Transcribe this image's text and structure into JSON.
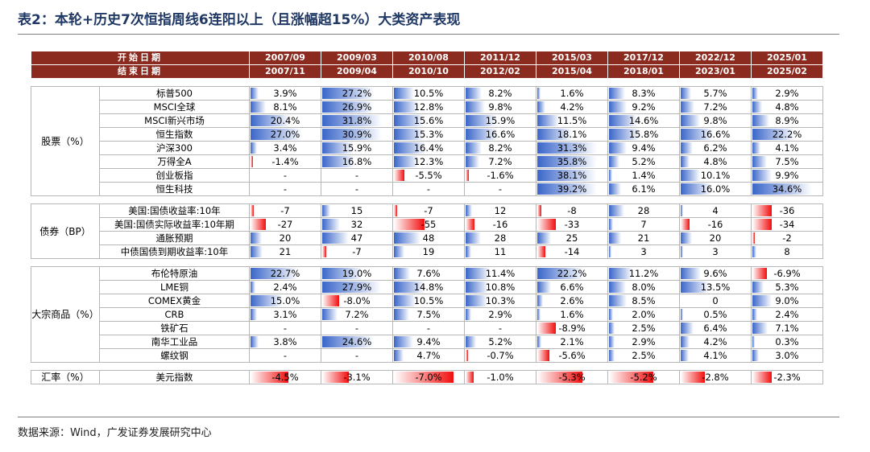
{
  "title": "表2：本轮+历史7次恒指周线6连阳以上（且涨幅超15%）大类资产表现",
  "source": "数据来源：Wind，广发证券发展研究中心",
  "header": {
    "start_label": "开始日期",
    "end_label": "结束日期",
    "start_dates": [
      "2007/09",
      "2009/03",
      "2010/08",
      "2011/12",
      "2015/03",
      "2017/12",
      "2022/12",
      "2025/01"
    ],
    "end_dates": [
      "2007/11",
      "2009/04",
      "2010/10",
      "2012/02",
      "2015/04",
      "2018/01",
      "2023/01",
      "2025/02"
    ]
  },
  "colors": {
    "header_bg": "#8b2a1f",
    "positive_bar": "#3a66c9",
    "negative_bar": "#f20d0d"
  },
  "sections": [
    {
      "name": "股票（%）",
      "key": "equity",
      "rows": [
        {
          "label": "标普500",
          "values": [
            "3.9%",
            "27.2%",
            "10.5%",
            "8.2%",
            "1.6%",
            "8.3%",
            "5.7%",
            "2.9%"
          ],
          "bars": [
            0.13,
            0.88,
            0.34,
            0.27,
            0.05,
            0.27,
            0.18,
            0.09
          ]
        },
        {
          "label": "MSCI全球",
          "values": [
            "8.1%",
            "26.9%",
            "12.8%",
            "9.8%",
            "4.2%",
            "9.2%",
            "7.2%",
            "4.8%"
          ],
          "bars": [
            0.26,
            0.87,
            0.41,
            0.32,
            0.14,
            0.3,
            0.23,
            0.16
          ]
        },
        {
          "label": "MSCI新兴市场",
          "values": [
            "20.4%",
            "31.8%",
            "15.6%",
            "15.9%",
            "11.5%",
            "14.6%",
            "9.8%",
            "8.9%"
          ],
          "bars": [
            0.66,
            1.0,
            0.5,
            0.51,
            0.37,
            0.47,
            0.32,
            0.29
          ]
        },
        {
          "label": "恒生指数",
          "values": [
            "27.0%",
            "30.9%",
            "15.3%",
            "16.6%",
            "18.1%",
            "15.8%",
            "16.6%",
            "22.2%"
          ],
          "bars": [
            0.87,
            1.0,
            0.5,
            0.54,
            0.58,
            0.51,
            0.54,
            0.72
          ]
        },
        {
          "label": "沪深300",
          "values": [
            "3.4%",
            "15.9%",
            "16.4%",
            "8.2%",
            "31.3%",
            "9.4%",
            "6.2%",
            "4.1%"
          ],
          "bars": [
            0.11,
            0.51,
            0.53,
            0.27,
            1.0,
            0.3,
            0.2,
            0.13
          ]
        },
        {
          "label": "万得全A",
          "values": [
            "-1.4%",
            "16.8%",
            "12.3%",
            "7.2%",
            "35.8%",
            "5.2%",
            "4.8%",
            "7.5%"
          ],
          "bars": [
            -0.04,
            0.54,
            0.4,
            0.23,
            1.0,
            0.17,
            0.15,
            0.24
          ]
        },
        {
          "label": "创业板指",
          "values": [
            "-",
            "-",
            "-5.5%",
            "-1.6%",
            "38.1%",
            "1.4%",
            "10.1%",
            "9.9%"
          ],
          "bars": [
            0,
            0,
            -0.18,
            -0.05,
            1.0,
            0.05,
            0.33,
            0.32
          ]
        },
        {
          "label": "恒生科技",
          "values": [
            "-",
            "-",
            "-",
            "-",
            "39.2%",
            "6.1%",
            "16.0%",
            "34.6%"
          ],
          "bars": [
            0,
            0,
            0,
            0,
            1.0,
            0.2,
            0.52,
            1.0
          ]
        }
      ]
    },
    {
      "name": "债券（BP）",
      "key": "bond",
      "rows": [
        {
          "label": "美国:国债收益率:10年",
          "values": [
            "-7",
            "15",
            "-7",
            "12",
            "-8",
            "28",
            "4",
            "-36"
          ],
          "bars": [
            -0.06,
            0.14,
            -0.06,
            0.11,
            -0.07,
            0.26,
            0.04,
            -0.33
          ]
        },
        {
          "label": "美国:国债实际收益率:10年期",
          "values": [
            "-27",
            "32",
            "-55",
            "-16",
            "-33",
            "7",
            "-16",
            "-34"
          ],
          "bars": [
            -0.25,
            0.3,
            -0.51,
            -0.15,
            -0.31,
            0.07,
            -0.15,
            -0.32
          ]
        },
        {
          "label": "通胀预期",
          "values": [
            "20",
            "47",
            "48",
            "28",
            "25",
            "21",
            "20",
            "-2"
          ],
          "bars": [
            0.19,
            0.44,
            0.45,
            0.26,
            0.23,
            0.2,
            0.19,
            -0.02
          ]
        },
        {
          "label": "中债国债到期收益率:10年",
          "values": [
            "21",
            "-7",
            "19",
            "11",
            "-14",
            "3",
            "3",
            "8"
          ],
          "bars": [
            0.2,
            -0.07,
            0.18,
            0.1,
            -0.13,
            0.03,
            0.03,
            0.07
          ]
        }
      ]
    },
    {
      "name": "大宗商品（%）",
      "key": "commodity",
      "rows": [
        {
          "label": "布伦特原油",
          "values": [
            "22.7%",
            "19.0%",
            "7.6%",
            "11.4%",
            "22.2%",
            "11.2%",
            "9.6%",
            "-6.9%"
          ],
          "bars": [
            0.8,
            0.67,
            0.27,
            0.4,
            0.78,
            0.39,
            0.34,
            -0.24
          ]
        },
        {
          "label": "LME铜",
          "values": [
            "2.4%",
            "27.9%",
            "14.8%",
            "10.8%",
            "6.6%",
            "8.0%",
            "13.5%",
            "5.3%"
          ],
          "bars": [
            0.08,
            0.98,
            0.52,
            0.38,
            0.23,
            0.28,
            0.47,
            0.19
          ]
        },
        {
          "label": "COMEX黄金",
          "values": [
            "15.0%",
            "-8.0%",
            "10.5%",
            "10.3%",
            "2.6%",
            "8.5%",
            "0",
            "9.0%"
          ],
          "bars": [
            0.53,
            -0.28,
            0.37,
            0.36,
            0.09,
            0.3,
            0,
            0.32
          ]
        },
        {
          "label": "CRB",
          "values": [
            "3.1%",
            "7.2%",
            "7.5%",
            "2.9%",
            "1.6%",
            "2.0%",
            "0.5%",
            "2.4%"
          ],
          "bars": [
            0.11,
            0.25,
            0.26,
            0.1,
            0.06,
            0.07,
            0.02,
            0.08
          ]
        },
        {
          "label": "铁矿石",
          "values": [
            "-",
            "-",
            "-",
            "-",
            "-8.9%",
            "2.5%",
            "6.4%",
            "7.1%"
          ],
          "bars": [
            0,
            0,
            0,
            0,
            -0.31,
            0.09,
            0.22,
            0.25
          ]
        },
        {
          "label": "南华工业品",
          "values": [
            "3.8%",
            "24.6%",
            "9.4%",
            "5.2%",
            "2.1%",
            "2.9%",
            "4.2%",
            "0.3%"
          ],
          "bars": [
            0.13,
            0.86,
            0.33,
            0.18,
            0.07,
            0.1,
            0.15,
            0.01
          ]
        },
        {
          "label": "螺纹钢",
          "values": [
            "-",
            "-",
            "4.7%",
            "-0.7%",
            "-5.6%",
            "2.5%",
            "4.1%",
            "3.0%"
          ],
          "bars": [
            0,
            0,
            0.16,
            -0.02,
            -0.2,
            0.09,
            0.14,
            0.11
          ]
        }
      ]
    },
    {
      "name": "汇率（%）",
      "key": "fx",
      "rows": [
        {
          "label": "美元指数",
          "values": [
            "-4.5%",
            "-3.1%",
            "-7.0%",
            "-1.0%",
            "-5.3%",
            "-5.2%",
            "-2.8%",
            "-2.3%"
          ],
          "bars": [
            -0.64,
            -0.44,
            -1.0,
            -0.14,
            -0.76,
            -0.74,
            -0.4,
            -0.33
          ]
        }
      ]
    }
  ]
}
